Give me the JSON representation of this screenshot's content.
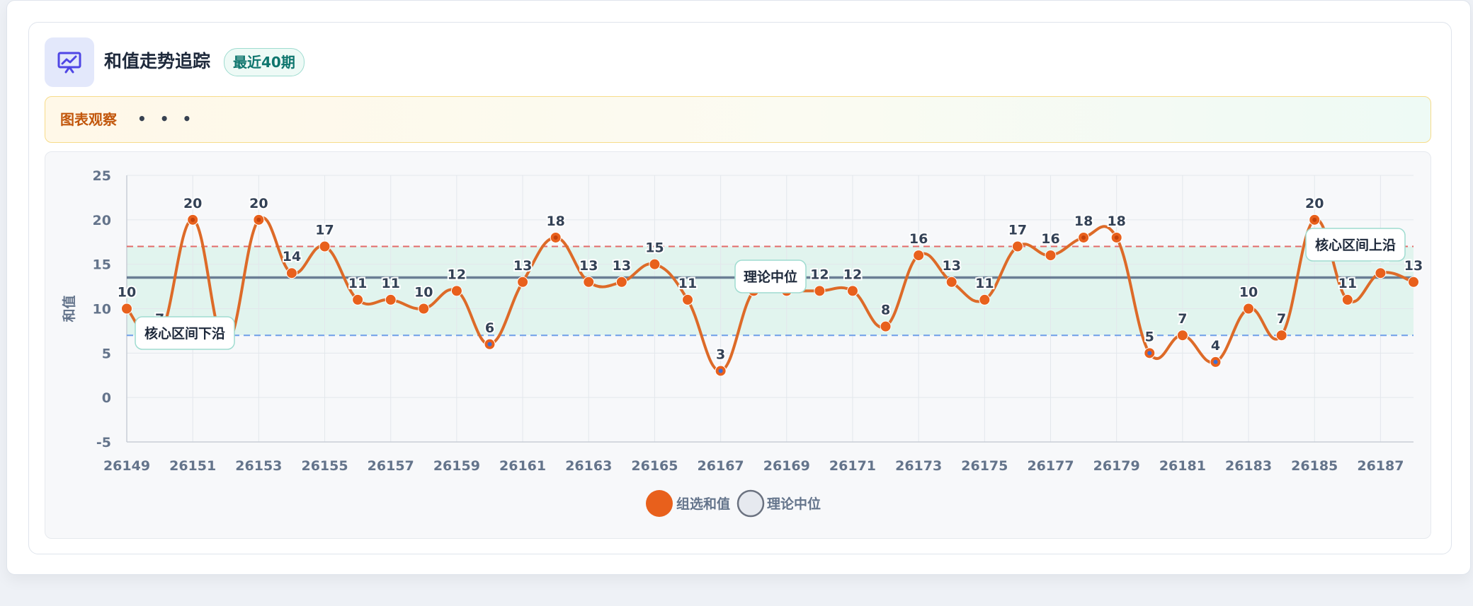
{
  "header": {
    "title": "和值走势追踪",
    "badge": "最近40期",
    "icon": "chart-presentation-icon"
  },
  "observation": {
    "label": "图表观察",
    "dots": "• • •"
  },
  "colors": {
    "series": "#e8601c",
    "line": "#dd6a28",
    "upper": "#e36b6b",
    "lower": "#6f9ee8",
    "median": "#566a85",
    "band": "#e1f4ee",
    "low_point": "#3b6fd6"
  },
  "chart_data": {
    "type": "line",
    "ylabel": "和值",
    "xlabel": "",
    "ylim": [
      -5,
      25
    ],
    "yticks": [
      25,
      20,
      15,
      10,
      5,
      0,
      -5
    ],
    "x_tick_labels": [
      "26149",
      "26151",
      "26153",
      "26155",
      "26157",
      "26159",
      "26161",
      "26163",
      "26165",
      "26167",
      "26169",
      "26171",
      "26173",
      "26175",
      "26177",
      "26179",
      "26181",
      "26183",
      "26185",
      "26187"
    ],
    "x": [
      26149,
      26150,
      26151,
      26152,
      26153,
      26154,
      26155,
      26156,
      26157,
      26158,
      26159,
      26160,
      26161,
      26162,
      26163,
      26164,
      26165,
      26166,
      26167,
      26168,
      26169,
      26170,
      26171,
      26172,
      26173,
      26174,
      26175,
      26176,
      26177,
      26178,
      26179,
      26180,
      26181,
      26182,
      26183,
      26184,
      26185,
      26186,
      26187,
      26188
    ],
    "series": [
      {
        "name": "组选和值",
        "values": [
          10,
          7,
          20,
          6,
          20,
          14,
          17,
          11,
          11,
          10,
          12,
          6,
          13,
          18,
          13,
          13,
          15,
          11,
          3,
          12,
          12,
          12,
          12,
          8,
          16,
          13,
          11,
          17,
          16,
          18,
          18,
          5,
          7,
          4,
          10,
          7,
          20,
          11,
          14,
          13
        ]
      }
    ],
    "core_upper": 17,
    "core_lower": 7,
    "median": 13.5,
    "annotations": {
      "core_lower": "核心区间下沿",
      "core_upper": "核心区间上沿",
      "median": "理论中位"
    },
    "legend": [
      {
        "label": "组选和值"
      },
      {
        "label": "理论中位"
      }
    ],
    "legend_position": "bottom",
    "grid": true
  }
}
